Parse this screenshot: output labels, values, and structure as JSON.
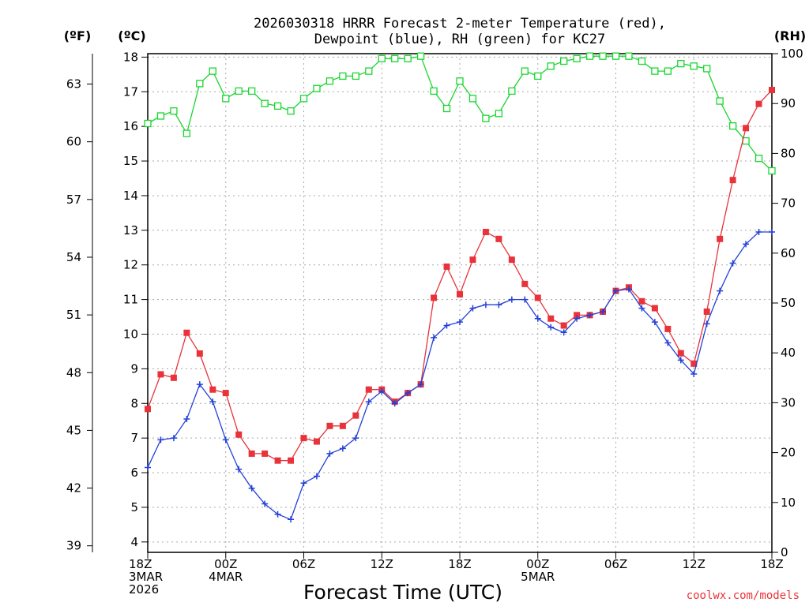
{
  "chart_data": {
    "type": "line",
    "title_lines": [
      "2026030318 HRRR Forecast 2-meter Temperature (red),",
      "Dewpoint (blue), RH (green) for KC27"
    ],
    "xlabel": "Forecast Time (UTC)",
    "credit": "coolwx.com/models",
    "axis_headers": {
      "f": "(ºF)",
      "c": "(ºC)",
      "rh": "(RH)"
    },
    "y_celsius": {
      "range": [
        3.7,
        18.1
      ],
      "ticks": [
        "4",
        "5",
        "6",
        "7",
        "8",
        "9",
        "10",
        "11",
        "12",
        "13",
        "14",
        "15",
        "16",
        "17",
        "18"
      ]
    },
    "y_fahrenheit": {
      "ticks": [
        "39",
        "42",
        "45",
        "48",
        "51",
        "54",
        "57",
        "60",
        "63"
      ]
    },
    "y_rh": {
      "range": [
        0,
        100
      ],
      "ticks": [
        "0",
        "10",
        "20",
        "30",
        "40",
        "50",
        "60",
        "70",
        "80",
        "90",
        "100"
      ]
    },
    "x_hours_range": [
      0,
      48
    ],
    "x_ticks": [
      {
        "hour": 0,
        "lines": [
          "18Z",
          "3MAR",
          "2026"
        ]
      },
      {
        "hour": 6,
        "lines": [
          "00Z",
          "4MAR"
        ]
      },
      {
        "hour": 12,
        "lines": [
          "06Z"
        ]
      },
      {
        "hour": 18,
        "lines": [
          "12Z"
        ]
      },
      {
        "hour": 24,
        "lines": [
          "18Z"
        ]
      },
      {
        "hour": 30,
        "lines": [
          "00Z",
          "5MAR"
        ]
      },
      {
        "hour": 36,
        "lines": [
          "06Z"
        ]
      },
      {
        "hour": 42,
        "lines": [
          "12Z"
        ]
      },
      {
        "hour": 48,
        "lines": [
          "18Z"
        ]
      }
    ],
    "series": [
      {
        "name": "2-meter Temperature",
        "unit": "C",
        "color": "#e8333a",
        "marker": "filled-square",
        "values": [
          7.84,
          8.84,
          8.74,
          10.04,
          9.44,
          8.4,
          8.3,
          7.1,
          6.55,
          6.55,
          6.35,
          6.35,
          7.0,
          6.9,
          7.35,
          7.35,
          7.65,
          8.4,
          8.4,
          8.05,
          8.3,
          8.55,
          11.05,
          11.95,
          11.15,
          12.15,
          12.95,
          12.75,
          12.15,
          11.45,
          11.05,
          10.45,
          10.25,
          10.55,
          10.55,
          10.65,
          11.25,
          11.35,
          10.95,
          10.75,
          10.15,
          9.45,
          9.15,
          10.65,
          12.75,
          14.45,
          15.95,
          16.65,
          17.05
        ]
      },
      {
        "name": "Dewpoint",
        "unit": "C",
        "color": "#2340d8",
        "marker": "plus",
        "values": [
          6.15,
          6.95,
          7.0,
          7.55,
          8.55,
          8.05,
          6.95,
          6.1,
          5.55,
          5.1,
          4.8,
          4.65,
          5.7,
          5.9,
          6.55,
          6.7,
          7.0,
          8.05,
          8.35,
          8.0,
          8.3,
          8.55,
          9.9,
          10.25,
          10.35,
          10.75,
          10.85,
          10.85,
          11.0,
          11.0,
          10.45,
          10.2,
          10.05,
          10.45,
          10.55,
          10.65,
          11.25,
          11.3,
          10.75,
          10.35,
          9.75,
          9.25,
          8.85,
          10.3,
          11.25,
          12.05,
          12.6,
          12.95,
          12.95
        ]
      },
      {
        "name": "RH",
        "unit": "%",
        "color": "#19d630",
        "marker": "open-square",
        "values": [
          86,
          87.5,
          88.5,
          84,
          94,
          96.5,
          91,
          92.5,
          92.5,
          90,
          89.5,
          88.5,
          91,
          93,
          94.5,
          95.5,
          95.5,
          96.5,
          99,
          99,
          99,
          99.5,
          92.5,
          89,
          94.5,
          91,
          87,
          88,
          92.5,
          96.5,
          95.5,
          97.5,
          98.5,
          99,
          99.5,
          99.5,
          99.5,
          99.5,
          98.5,
          96.5,
          96.5,
          98,
          97.5,
          97,
          90.5,
          85.5,
          82.5,
          79,
          76.5
        ]
      }
    ]
  }
}
